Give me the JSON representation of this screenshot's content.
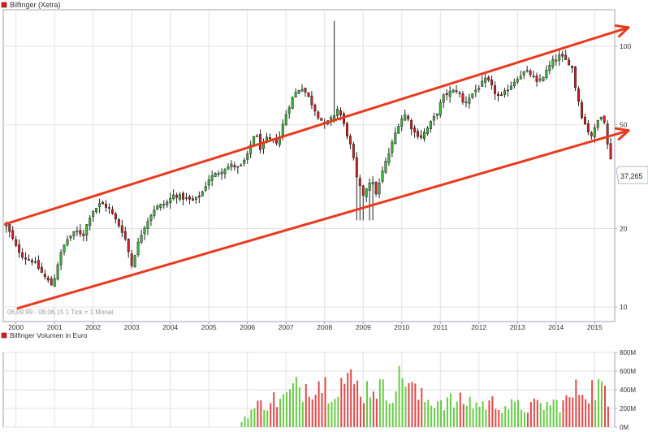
{
  "colors": {
    "up": "#3cb53c",
    "down": "#d42020",
    "wick": "#222222",
    "trend": "#e83a1e",
    "grid": "#e2e2e2",
    "vol_up": "#66cc44",
    "vol_down": "#e04848"
  },
  "chart_data": [
    {
      "type": "candlestick",
      "title": "Bilfinger (Xetra)",
      "date_range_note": "06.09.99 - 08.06.15   1 Tick = 1 Monat",
      "last_value_label": "37,265",
      "y_scale": "log",
      "ylim": [
        8.8,
        138
      ],
      "y_ticks": [
        10,
        20,
        50,
        100
      ],
      "y_tick_labels": [
        "10",
        "20",
        "50",
        "100"
      ],
      "xlim": [
        1999.67,
        2015.52
      ],
      "x_tick_labels": [
        "2000",
        "2001",
        "2002",
        "2003",
        "2004",
        "2005",
        "2006",
        "2007",
        "2008",
        "2009",
        "2010",
        "2011",
        "2012",
        "2013",
        "2014",
        "2015"
      ],
      "anchors": [
        [
          1999.75,
          20.5
        ],
        [
          2000.0,
          17.0
        ],
        [
          2000.2,
          15.5
        ],
        [
          2000.45,
          15.0
        ],
        [
          2000.75,
          13.0
        ],
        [
          2000.95,
          12.0
        ],
        [
          2001.1,
          15.0
        ],
        [
          2001.3,
          18.0
        ],
        [
          2001.55,
          19.5
        ],
        [
          2001.75,
          19.0
        ],
        [
          2001.95,
          23.0
        ],
        [
          2002.2,
          25.0
        ],
        [
          2002.4,
          24.0
        ],
        [
          2002.55,
          22.0
        ],
        [
          2002.8,
          19.0
        ],
        [
          2002.95,
          15.5
        ],
        [
          2003.0,
          14.5
        ],
        [
          2003.3,
          20.0
        ],
        [
          2003.6,
          24.0
        ],
        [
          2003.9,
          25.0
        ],
        [
          2004.1,
          27.0
        ],
        [
          2004.4,
          26.0
        ],
        [
          2004.6,
          25.5
        ],
        [
          2004.8,
          27.0
        ],
        [
          2005.0,
          31.0
        ],
        [
          2005.4,
          34.0
        ],
        [
          2005.6,
          35.0
        ],
        [
          2005.8,
          34.0
        ],
        [
          2006.0,
          38.0
        ],
        [
          2006.2,
          47.0
        ],
        [
          2006.35,
          40.0
        ],
        [
          2006.5,
          44.0
        ],
        [
          2006.8,
          43.0
        ],
        [
          2007.0,
          55.0
        ],
        [
          2007.2,
          65.0
        ],
        [
          2007.4,
          70.0
        ],
        [
          2007.55,
          65.0
        ],
        [
          2007.8,
          55.0
        ],
        [
          2008.0,
          50.0
        ],
        [
          2008.2,
          53.0
        ],
        [
          2008.35,
          58.0
        ],
        [
          2008.5,
          50.0
        ],
        [
          2008.7,
          40.0
        ],
        [
          2008.85,
          30.0
        ],
        [
          2009.0,
          27.0
        ],
        [
          2009.2,
          31.0
        ],
        [
          2009.35,
          27.0
        ],
        [
          2009.5,
          33.0
        ],
        [
          2009.7,
          40.0
        ],
        [
          2009.95,
          52.0
        ],
        [
          2010.1,
          55.0
        ],
        [
          2010.3,
          47.0
        ],
        [
          2010.5,
          45.0
        ],
        [
          2010.65,
          48.0
        ],
        [
          2010.9,
          55.0
        ],
        [
          2011.1,
          65.0
        ],
        [
          2011.3,
          67.0
        ],
        [
          2011.45,
          68.0
        ],
        [
          2011.6,
          60.0
        ],
        [
          2011.8,
          65.0
        ],
        [
          2012.0,
          70.0
        ],
        [
          2012.2,
          75.0
        ],
        [
          2012.4,
          67.0
        ],
        [
          2012.55,
          63.0
        ],
        [
          2012.8,
          70.0
        ],
        [
          2013.0,
          76.0
        ],
        [
          2013.2,
          80.0
        ],
        [
          2013.35,
          78.0
        ],
        [
          2013.5,
          72.0
        ],
        [
          2013.7,
          78.0
        ],
        [
          2013.9,
          87.0
        ],
        [
          2014.1,
          92.0
        ],
        [
          2014.25,
          88.0
        ],
        [
          2014.4,
          85.0
        ],
        [
          2014.5,
          70.0
        ],
        [
          2014.65,
          55.0
        ],
        [
          2014.8,
          48.0
        ],
        [
          2014.95,
          45.0
        ],
        [
          2015.0,
          48.0
        ],
        [
          2015.15,
          55.0
        ],
        [
          2015.25,
          52.0
        ],
        [
          2015.33,
          42.0
        ],
        [
          2015.42,
          37.3
        ]
      ],
      "spikes": [
        {
          "x": 2008.28,
          "high": 125
        }
      ],
      "trend_lines": [
        {
          "from": [
            1999.72,
            20.8
          ],
          "to": [
            2015.88,
            118
          ]
        },
        {
          "from": [
            2000.05,
            9.9
          ],
          "to": [
            2015.88,
            47.5
          ]
        }
      ]
    },
    {
      "type": "bar",
      "title": "Bilfinger Volumen in Euro",
      "ylim": [
        0,
        800
      ],
      "y_ticks": [
        0,
        200,
        400,
        600,
        800
      ],
      "y_tick_labels": [
        "0M",
        "200M",
        "400M",
        "600M",
        "800M"
      ],
      "unit": "Mio. Euro",
      "start": 2005.85,
      "end": 2015.42,
      "anchors": [
        [
          2005.85,
          60
        ],
        [
          2006.0,
          160
        ],
        [
          2006.3,
          250
        ],
        [
          2006.6,
          320
        ],
        [
          2006.9,
          310
        ],
        [
          2007.2,
          430
        ],
        [
          2007.5,
          480
        ],
        [
          2007.8,
          560
        ],
        [
          2008.1,
          460
        ],
        [
          2008.4,
          540
        ],
        [
          2008.7,
          520
        ],
        [
          2009.0,
          420
        ],
        [
          2009.3,
          500
        ],
        [
          2009.6,
          380
        ],
        [
          2009.9,
          520
        ],
        [
          2010.1,
          620
        ],
        [
          2010.4,
          350
        ],
        [
          2010.7,
          300
        ],
        [
          2011.0,
          320
        ],
        [
          2011.4,
          280
        ],
        [
          2011.7,
          300
        ],
        [
          2012.0,
          260
        ],
        [
          2012.4,
          280
        ],
        [
          2012.8,
          240
        ],
        [
          2013.2,
          230
        ],
        [
          2013.6,
          250
        ],
        [
          2014.0,
          270
        ],
        [
          2014.3,
          300
        ],
        [
          2014.6,
          450
        ],
        [
          2014.9,
          440
        ],
        [
          2015.2,
          470
        ],
        [
          2015.42,
          100
        ]
      ]
    }
  ]
}
